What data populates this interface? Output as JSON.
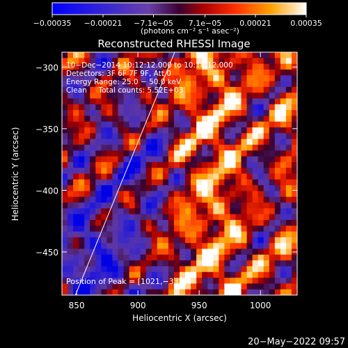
{
  "chart_data": {
    "type": "heatmap",
    "title": "Reconstructed RHESSI Image",
    "xlabel": "Heliocentric X (arcsec)",
    "ylabel": "Heliocentric Y (arcsec)",
    "xlim": [
      838,
      1030
    ],
    "ylim": [
      -485,
      -288
    ],
    "x_ticks": [
      850,
      900,
      950,
      1000
    ],
    "y_ticks": [
      -300,
      -350,
      -400,
      -450
    ],
    "x_tick_labels": [
      "850",
      "900",
      "950",
      "1000"
    ],
    "y_tick_labels": [
      "−300",
      "−350",
      "−400",
      "−450"
    ],
    "colorbar": {
      "range": [
        -0.00035,
        0.00035
      ],
      "ticks": [
        -0.00035,
        -0.00021,
        -7.1e-05,
        7.1e-05,
        0.00021,
        0.00035
      ],
      "tick_labels": [
        "−0.00035",
        "−0.00021",
        "−7.1e−05",
        "7.1e−05",
        "0.00021",
        "0.00035"
      ],
      "unit_label": "(photons cm⁻² s⁻¹ asec⁻²)"
    },
    "annotations": [
      "10−Dec−2014 10:12:12.000 to 10:18:12.000",
      "Detectors: 3F 6F 7F 9F, Att 0",
      "Energy Range: 25.0 − 50.0 keV",
      "Clean     Total counts: 5.52E+03"
    ],
    "peak_label": "Position of Peak = [1021,−332]",
    "limb_line": {
      "from": [
        849,
        -485
      ],
      "to": [
        930,
        -288
      ]
    },
    "colors": {
      "background": "#000000",
      "axis": "#ffffff"
    }
  },
  "footer": {
    "timestamp": "20−May−2022 09:57"
  }
}
